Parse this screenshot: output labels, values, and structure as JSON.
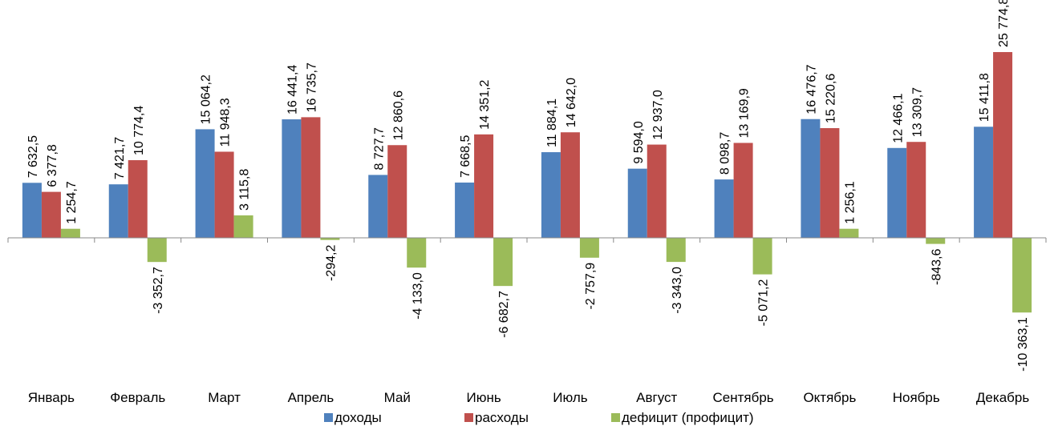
{
  "chart_data": {
    "type": "bar",
    "categories": [
      "Январь",
      "Февраль",
      "Март",
      "Апрель",
      "Май",
      "Июнь",
      "Июль",
      "Август",
      "Сентябрь",
      "Октябрь",
      "Ноябрь",
      "Декабрь"
    ],
    "series": [
      {
        "name": "доходы",
        "color": "#4F81BD",
        "values": [
          7632.5,
          7421.7,
          15064.2,
          16441.4,
          8727.7,
          7668.5,
          11884.1,
          9594.0,
          8098.7,
          16476.7,
          12466.1,
          15411.8
        ],
        "labels": [
          "7 632,5",
          "7 421,7",
          "15 064,2",
          "16 441,4",
          "8 727,7",
          "7 668,5",
          "11 884,1",
          "9 594,0",
          "8 098,7",
          "16 476,7",
          "12 466,1",
          "15 411,8"
        ]
      },
      {
        "name": "расходы",
        "color": "#C0504D",
        "values": [
          6377.8,
          10774.4,
          11948.3,
          16735.7,
          12860.6,
          14351.2,
          14642.0,
          12937.0,
          13169.9,
          15220.6,
          13309.7,
          25774.8
        ],
        "labels": [
          "6 377,8",
          "10 774,4",
          "11 948,3",
          "16 735,7",
          "12 860,6",
          "14 351,2",
          "14 642,0",
          "12 937,0",
          "13 169,9",
          "15 220,6",
          "13 309,7",
          "25 774,8"
        ]
      },
      {
        "name": "дефицит (профицит)",
        "color": "#9BBB59",
        "values": [
          1254.7,
          -3352.7,
          3115.8,
          -294.2,
          -4133.0,
          -6682.7,
          -2757.9,
          -3343.0,
          -5071.2,
          1256.1,
          -843.6,
          -10363.1
        ],
        "labels": [
          "1 254,7",
          "-3 352,7",
          "3 115,8",
          "-294,2",
          "-4 133,0",
          "-6 682,7",
          "-2 757,9",
          "-3 343,0",
          "-5 071,2",
          "1 256,1",
          "-843,6",
          "-10 363,1"
        ]
      }
    ],
    "legend_position": "bottom",
    "grid": false
  }
}
